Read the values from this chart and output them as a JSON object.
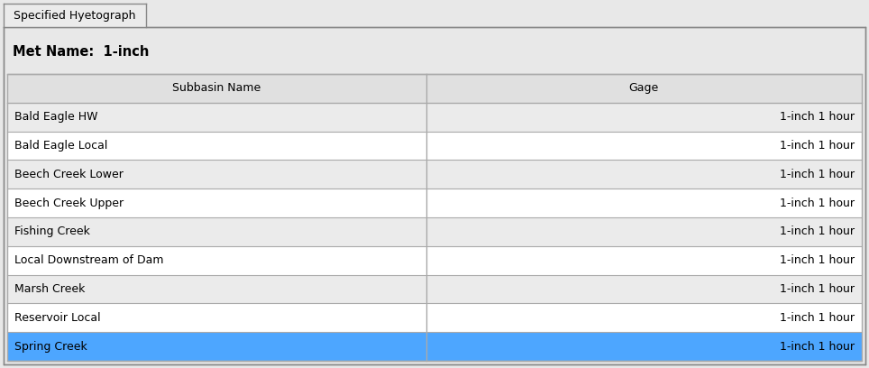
{
  "tab_label": "Specified Hyetograph",
  "met_name_label": "Met Name:  1-inch",
  "col_headers": [
    "Subbasin Name",
    "Gage"
  ],
  "rows": [
    [
      "Bald Eagle HW",
      "1-inch 1 hour"
    ],
    [
      "Bald Eagle Local",
      "1-inch 1 hour"
    ],
    [
      "Beech Creek Lower",
      "1-inch 1 hour"
    ],
    [
      "Beech Creek Upper",
      "1-inch 1 hour"
    ],
    [
      "Fishing Creek",
      "1-inch 1 hour"
    ],
    [
      "Local Downstream of Dam",
      "1-inch 1 hour"
    ],
    [
      "Marsh Creek",
      "1-inch 1 hour"
    ],
    [
      "Reservoir Local",
      "1-inch 1 hour"
    ],
    [
      "Spring Creek",
      "1-inch 1 hour"
    ]
  ],
  "highlighted_row": 8,
  "highlight_color": "#4da6ff",
  "col_split": 0.49,
  "outer_bg": "#e8e8e8",
  "panel_bg": "#e8e8e8",
  "header_bg": "#e0e0e0",
  "row_bg_even": "#ebebeb",
  "row_bg_odd": "#ffffff",
  "border_color": "#aaaaaa",
  "border_dark": "#888888",
  "text_color": "#000000",
  "tab_bg": "#ebebeb",
  "font_size": 9.0,
  "header_font_size": 9.0,
  "met_font_size": 10.5,
  "tab_font_size": 9.0,
  "fig_width": 9.64,
  "fig_height": 4.08,
  "dpi": 100
}
